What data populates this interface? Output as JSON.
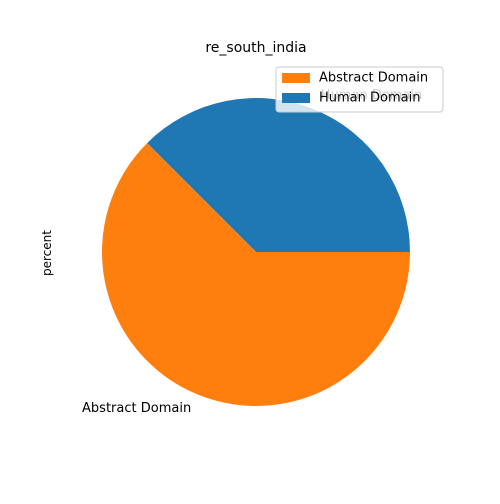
{
  "chart_data": {
    "type": "pie",
    "title": "re_south_india",
    "ylabel": "percent",
    "slices": [
      {
        "label": "Human Domain",
        "value": 37.5,
        "color": "#1f77b4"
      },
      {
        "label": "Abstract Domain",
        "value": 62.5,
        "color": "#ff7f0e"
      }
    ],
    "legend": {
      "placement": "top-right",
      "entries": [
        {
          "label": "Abstract Domain",
          "color": "#ff7f0e"
        },
        {
          "label": "Human Domain",
          "color": "#1f77b4"
        }
      ]
    }
  }
}
